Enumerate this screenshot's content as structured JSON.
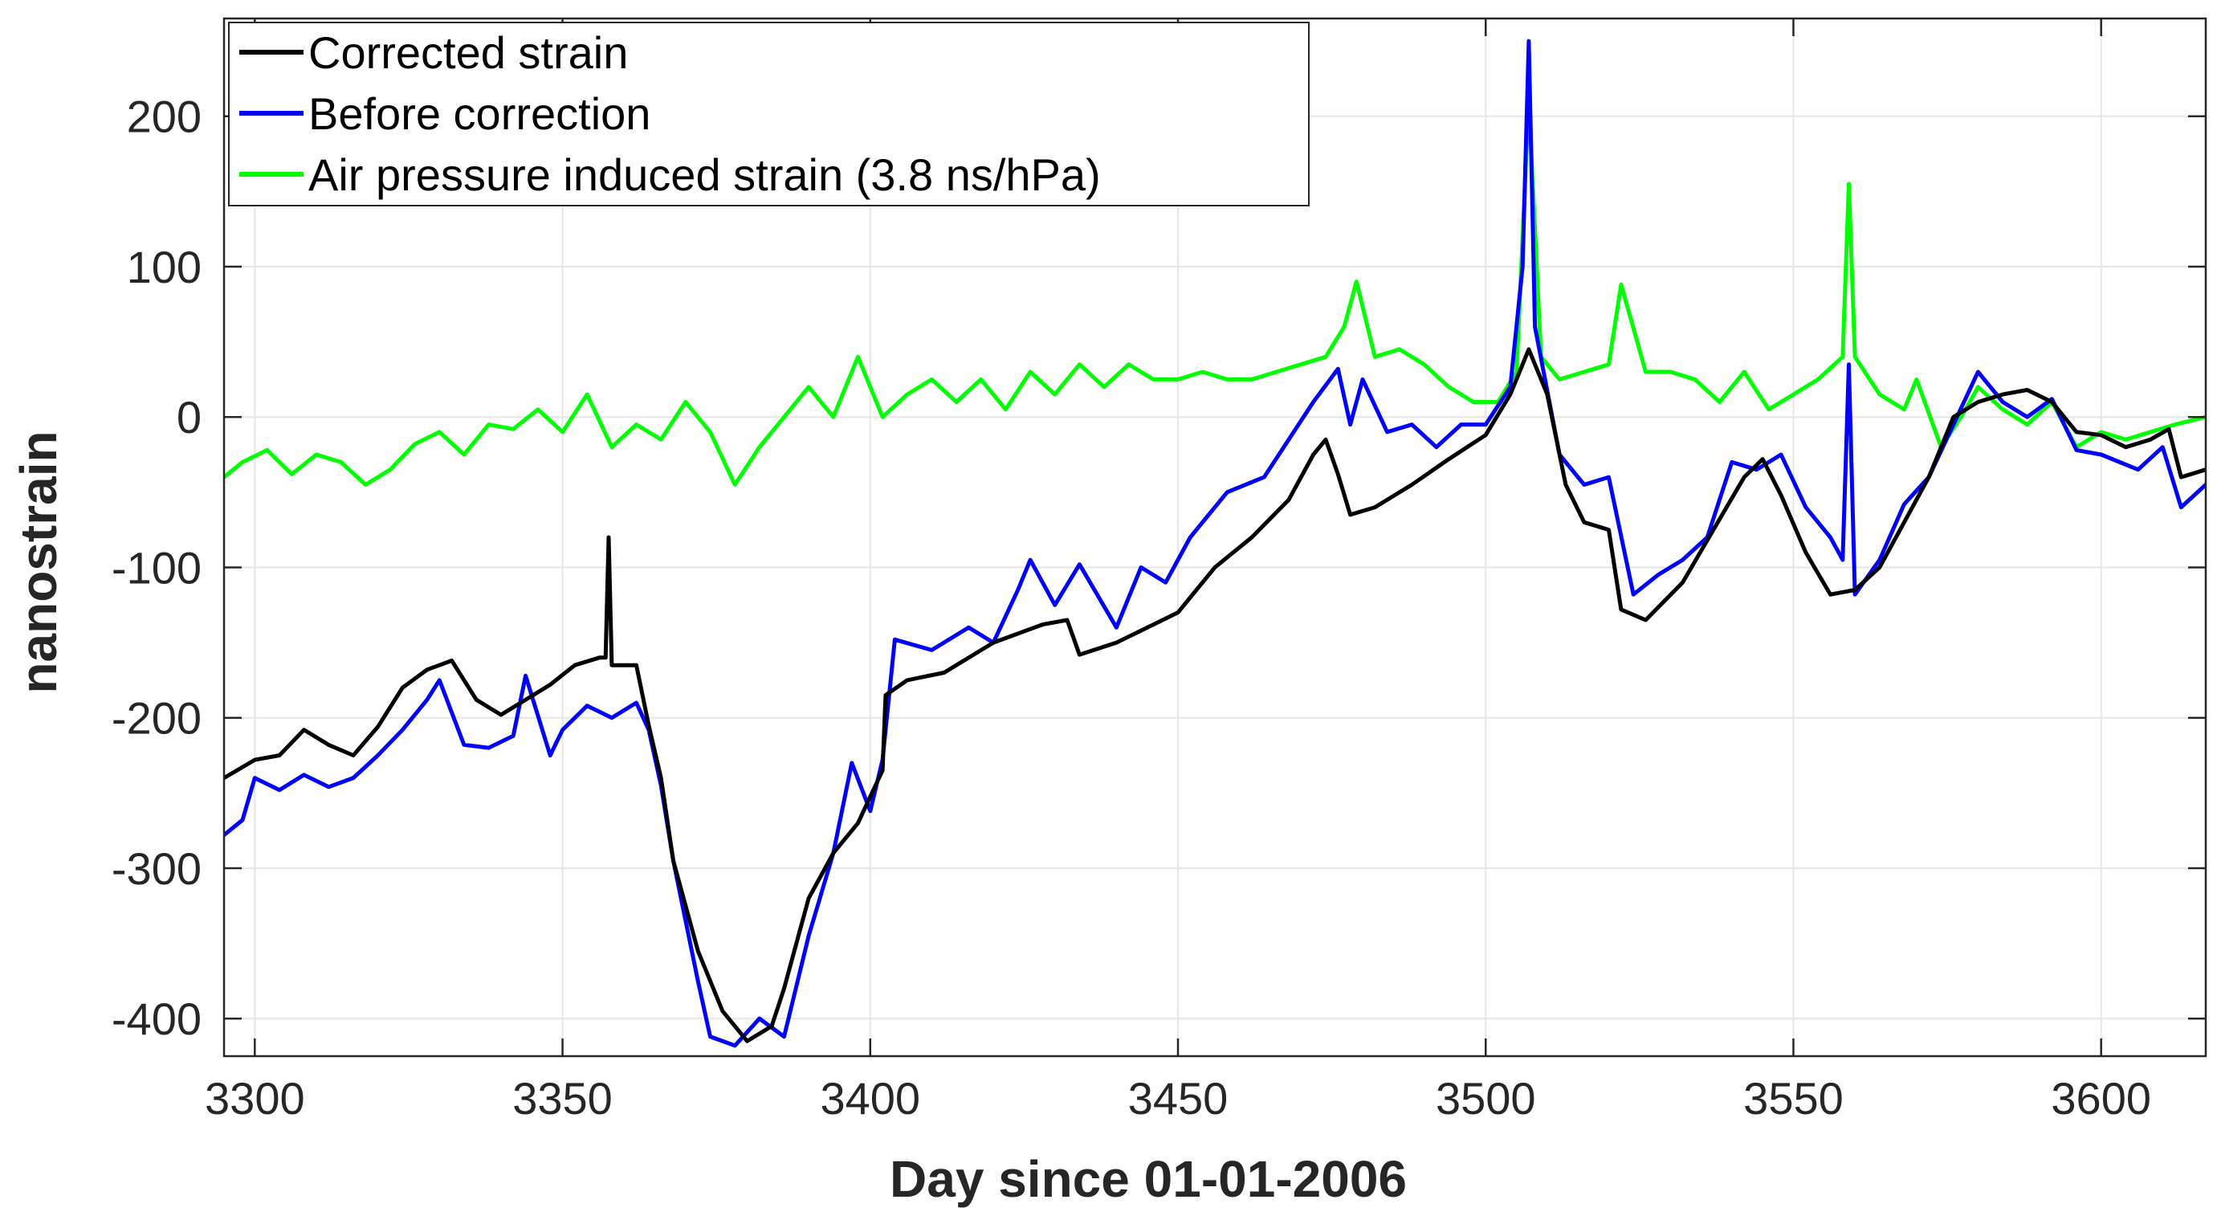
{
  "chart_data": {
    "type": "line",
    "title": "",
    "xlabel": "Day since 01-01-2006",
    "ylabel": "nanostrain",
    "xlim": [
      3295,
      3617
    ],
    "ylim": [
      -425,
      265
    ],
    "xticks": [
      3300,
      3350,
      3400,
      3450,
      3500,
      3550,
      3600
    ],
    "yticks": [
      200,
      100,
      0,
      -100,
      -200,
      -300,
      -400
    ],
    "grid": true,
    "legend_position": "top-left",
    "series": [
      {
        "name": "Corrected strain",
        "color": "#000000",
        "points": [
          [
            3295,
            -240
          ],
          [
            3300,
            -228
          ],
          [
            3304,
            -225
          ],
          [
            3308,
            -208
          ],
          [
            3312,
            -218
          ],
          [
            3316,
            -225
          ],
          [
            3320,
            -206
          ],
          [
            3324,
            -180
          ],
          [
            3328,
            -168
          ],
          [
            3332,
            -162
          ],
          [
            3336,
            -188
          ],
          [
            3340,
            -198
          ],
          [
            3344,
            -188
          ],
          [
            3348,
            -178
          ],
          [
            3352,
            -165
          ],
          [
            3356,
            -160
          ],
          [
            3357,
            -160
          ],
          [
            3357.5,
            -80
          ],
          [
            3358,
            -165
          ],
          [
            3362,
            -165
          ],
          [
            3364,
            -205
          ],
          [
            3366,
            -240
          ],
          [
            3368,
            -295
          ],
          [
            3372,
            -355
          ],
          [
            3376,
            -395
          ],
          [
            3380,
            -415
          ],
          [
            3384,
            -405
          ],
          [
            3386,
            -380
          ],
          [
            3390,
            -320
          ],
          [
            3394,
            -290
          ],
          [
            3398,
            -270
          ],
          [
            3402,
            -235
          ],
          [
            3402.5,
            -185
          ],
          [
            3406,
            -175
          ],
          [
            3412,
            -170
          ],
          [
            3420,
            -150
          ],
          [
            3428,
            -138
          ],
          [
            3432,
            -135
          ],
          [
            3434,
            -158
          ],
          [
            3440,
            -150
          ],
          [
            3446,
            -138
          ],
          [
            3450,
            -130
          ],
          [
            3456,
            -100
          ],
          [
            3462,
            -80
          ],
          [
            3468,
            -55
          ],
          [
            3472,
            -25
          ],
          [
            3474,
            -15
          ],
          [
            3476,
            -38
          ],
          [
            3478,
            -65
          ],
          [
            3482,
            -60
          ],
          [
            3488,
            -45
          ],
          [
            3494,
            -28
          ],
          [
            3500,
            -12
          ],
          [
            3504,
            15
          ],
          [
            3507,
            45
          ],
          [
            3510,
            15
          ],
          [
            3513,
            -45
          ],
          [
            3516,
            -70
          ],
          [
            3520,
            -75
          ],
          [
            3522,
            -128
          ],
          [
            3526,
            -135
          ],
          [
            3532,
            -110
          ],
          [
            3538,
            -68
          ],
          [
            3542,
            -40
          ],
          [
            3545,
            -28
          ],
          [
            3548,
            -52
          ],
          [
            3552,
            -90
          ],
          [
            3556,
            -118
          ],
          [
            3560,
            -115
          ],
          [
            3564,
            -100
          ],
          [
            3568,
            -70
          ],
          [
            3572,
            -40
          ],
          [
            3576,
            0
          ],
          [
            3580,
            10
          ],
          [
            3584,
            15
          ],
          [
            3588,
            18
          ],
          [
            3592,
            10
          ],
          [
            3596,
            -10
          ],
          [
            3600,
            -12
          ],
          [
            3604,
            -20
          ],
          [
            3608,
            -15
          ],
          [
            3611,
            -8
          ],
          [
            3613,
            -40
          ],
          [
            3617,
            -35
          ]
        ]
      },
      {
        "name": "Before correction",
        "color": "#0000ff",
        "points": [
          [
            3295,
            -278
          ],
          [
            3298,
            -268
          ],
          [
            3300,
            -240
          ],
          [
            3304,
            -248
          ],
          [
            3308,
            -238
          ],
          [
            3312,
            -246
          ],
          [
            3316,
            -240
          ],
          [
            3320,
            -225
          ],
          [
            3324,
            -208
          ],
          [
            3328,
            -188
          ],
          [
            3330,
            -175
          ],
          [
            3334,
            -218
          ],
          [
            3338,
            -220
          ],
          [
            3342,
            -212
          ],
          [
            3344,
            -172
          ],
          [
            3348,
            -225
          ],
          [
            3350,
            -208
          ],
          [
            3354,
            -192
          ],
          [
            3358,
            -200
          ],
          [
            3362,
            -190
          ],
          [
            3364,
            -208
          ],
          [
            3366,
            -245
          ],
          [
            3368,
            -295
          ],
          [
            3372,
            -375
          ],
          [
            3374,
            -412
          ],
          [
            3378,
            -418
          ],
          [
            3382,
            -400
          ],
          [
            3386,
            -412
          ],
          [
            3390,
            -345
          ],
          [
            3394,
            -290
          ],
          [
            3397,
            -230
          ],
          [
            3400,
            -262
          ],
          [
            3402,
            -228
          ],
          [
            3404,
            -148
          ],
          [
            3410,
            -155
          ],
          [
            3416,
            -140
          ],
          [
            3420,
            -150
          ],
          [
            3424,
            -115
          ],
          [
            3426,
            -95
          ],
          [
            3430,
            -125
          ],
          [
            3434,
            -98
          ],
          [
            3440,
            -140
          ],
          [
            3444,
            -100
          ],
          [
            3448,
            -110
          ],
          [
            3452,
            -80
          ],
          [
            3458,
            -50
          ],
          [
            3464,
            -40
          ],
          [
            3468,
            -15
          ],
          [
            3472,
            10
          ],
          [
            3476,
            32
          ],
          [
            3478,
            -5
          ],
          [
            3480,
            25
          ],
          [
            3484,
            -10
          ],
          [
            3488,
            -5
          ],
          [
            3492,
            -20
          ],
          [
            3496,
            -5
          ],
          [
            3500,
            -5
          ],
          [
            3504,
            20
          ],
          [
            3506,
            100
          ],
          [
            3507,
            250
          ],
          [
            3508,
            60
          ],
          [
            3512,
            -25
          ],
          [
            3516,
            -45
          ],
          [
            3520,
            -40
          ],
          [
            3524,
            -118
          ],
          [
            3528,
            -105
          ],
          [
            3532,
            -95
          ],
          [
            3536,
            -80
          ],
          [
            3540,
            -30
          ],
          [
            3544,
            -35
          ],
          [
            3548,
            -25
          ],
          [
            3552,
            -60
          ],
          [
            3556,
            -80
          ],
          [
            3558,
            -95
          ],
          [
            3559,
            35
          ],
          [
            3560,
            -118
          ],
          [
            3564,
            -95
          ],
          [
            3568,
            -58
          ],
          [
            3572,
            -40
          ],
          [
            3576,
            -5
          ],
          [
            3580,
            30
          ],
          [
            3584,
            10
          ],
          [
            3588,
            0
          ],
          [
            3592,
            12
          ],
          [
            3596,
            -22
          ],
          [
            3600,
            -25
          ],
          [
            3606,
            -35
          ],
          [
            3610,
            -20
          ],
          [
            3613,
            -60
          ],
          [
            3617,
            -45
          ]
        ]
      },
      {
        "name": "Air pressure induced strain (3.8 ns/hPa)",
        "color": "#00ff00",
        "points": [
          [
            3295,
            -40
          ],
          [
            3298,
            -30
          ],
          [
            3302,
            -22
          ],
          [
            3306,
            -38
          ],
          [
            3310,
            -25
          ],
          [
            3314,
            -30
          ],
          [
            3318,
            -45
          ],
          [
            3322,
            -35
          ],
          [
            3326,
            -18
          ],
          [
            3330,
            -10
          ],
          [
            3334,
            -25
          ],
          [
            3338,
            -5
          ],
          [
            3342,
            -8
          ],
          [
            3346,
            5
          ],
          [
            3350,
            -10
          ],
          [
            3354,
            15
          ],
          [
            3358,
            -20
          ],
          [
            3362,
            -5
          ],
          [
            3366,
            -15
          ],
          [
            3370,
            10
          ],
          [
            3374,
            -10
          ],
          [
            3378,
            -45
          ],
          [
            3382,
            -20
          ],
          [
            3386,
            0
          ],
          [
            3390,
            20
          ],
          [
            3394,
            0
          ],
          [
            3398,
            40
          ],
          [
            3402,
            0
          ],
          [
            3406,
            15
          ],
          [
            3410,
            25
          ],
          [
            3414,
            10
          ],
          [
            3418,
            25
          ],
          [
            3422,
            5
          ],
          [
            3426,
            30
          ],
          [
            3430,
            15
          ],
          [
            3434,
            35
          ],
          [
            3438,
            20
          ],
          [
            3442,
            35
          ],
          [
            3446,
            25
          ],
          [
            3450,
            25
          ],
          [
            3454,
            30
          ],
          [
            3458,
            25
          ],
          [
            3462,
            25
          ],
          [
            3466,
            30
          ],
          [
            3470,
            35
          ],
          [
            3474,
            40
          ],
          [
            3477,
            60
          ],
          [
            3479,
            90
          ],
          [
            3482,
            40
          ],
          [
            3486,
            45
          ],
          [
            3490,
            35
          ],
          [
            3494,
            20
          ],
          [
            3498,
            10
          ],
          [
            3502,
            10
          ],
          [
            3505,
            30
          ],
          [
            3507,
            210
          ],
          [
            3509,
            40
          ],
          [
            3512,
            25
          ],
          [
            3516,
            30
          ],
          [
            3520,
            35
          ],
          [
            3522,
            88
          ],
          [
            3526,
            30
          ],
          [
            3530,
            30
          ],
          [
            3534,
            25
          ],
          [
            3538,
            10
          ],
          [
            3542,
            30
          ],
          [
            3546,
            5
          ],
          [
            3550,
            15
          ],
          [
            3554,
            25
          ],
          [
            3558,
            40
          ],
          [
            3559,
            155
          ],
          [
            3560,
            40
          ],
          [
            3564,
            15
          ],
          [
            3568,
            5
          ],
          [
            3570,
            25
          ],
          [
            3574,
            -20
          ],
          [
            3578,
            5
          ],
          [
            3580,
            20
          ],
          [
            3584,
            5
          ],
          [
            3588,
            -5
          ],
          [
            3592,
            10
          ],
          [
            3596,
            -20
          ],
          [
            3600,
            -10
          ],
          [
            3604,
            -15
          ],
          [
            3608,
            -10
          ],
          [
            3612,
            -5
          ],
          [
            3617,
            0
          ]
        ]
      }
    ]
  }
}
